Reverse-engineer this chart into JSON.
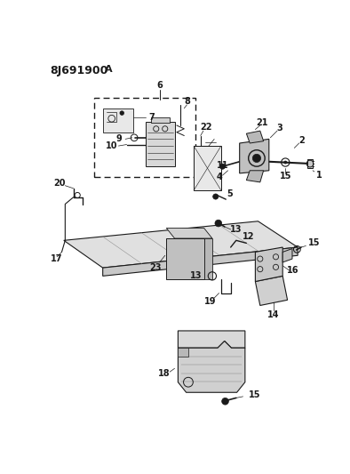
{
  "title": "8J691900A",
  "bg_color": "#ffffff",
  "line_color": "#1a1a1a",
  "fig_width": 3.94,
  "fig_height": 5.33,
  "dpi": 100
}
